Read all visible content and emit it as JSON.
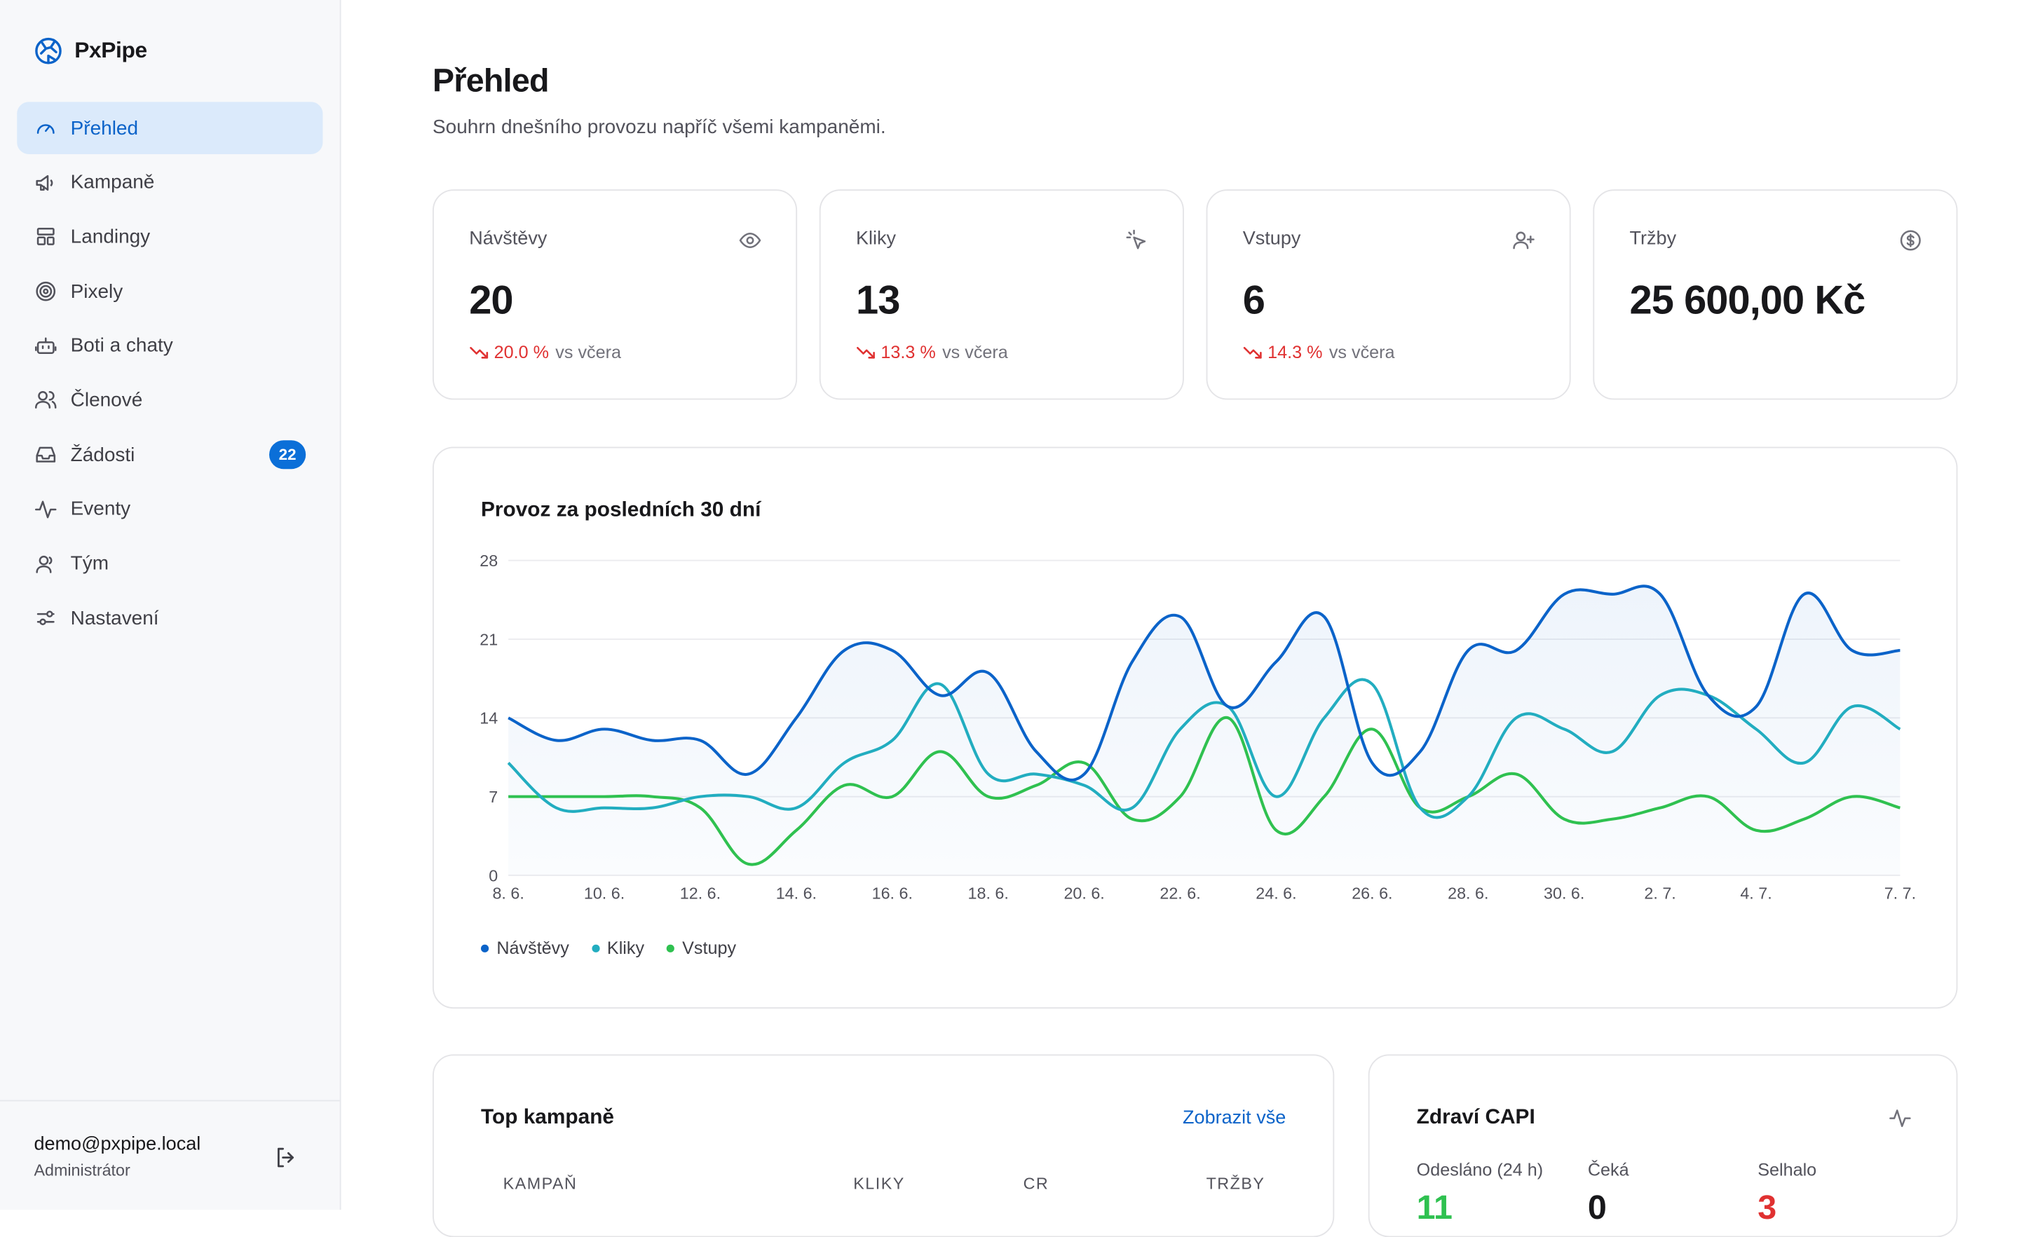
{
  "brand": {
    "name": "PxPipe"
  },
  "nav": {
    "items": [
      {
        "label": "Přehled",
        "icon": "gauge-icon"
      },
      {
        "label": "Kampaně",
        "icon": "megaphone-icon"
      },
      {
        "label": "Landingy",
        "icon": "layout-icon"
      },
      {
        "label": "Pixely",
        "icon": "target-icon"
      },
      {
        "label": "Boti a chaty",
        "icon": "bot-icon"
      },
      {
        "label": "Členové",
        "icon": "users-icon"
      },
      {
        "label": "Žádosti",
        "icon": "inbox-icon",
        "badge": "22"
      },
      {
        "label": "Eventy",
        "icon": "activity-icon"
      },
      {
        "label": "Tým",
        "icon": "team-icon"
      },
      {
        "label": "Nastavení",
        "icon": "sliders-icon"
      }
    ],
    "active": "Přehled"
  },
  "user": {
    "email": "demo@pxpipe.local",
    "role": "Administrátor"
  },
  "page": {
    "title": "Přehled",
    "subtitle": "Souhrn dnešního provozu napříč všemi kampaněmi."
  },
  "kpis": [
    {
      "label": "Návštěvy",
      "value": "20",
      "delta": "20.0 %",
      "vs": "vs včera",
      "icon": "eye-icon"
    },
    {
      "label": "Kliky",
      "value": "13",
      "delta": "13.3 %",
      "vs": "vs včera",
      "icon": "cursor-click-icon"
    },
    {
      "label": "Vstupy",
      "value": "6",
      "delta": "14.3 %",
      "vs": "vs včera",
      "icon": "user-plus-icon"
    },
    {
      "label": "Tržby",
      "value": "25 600,00 Kč",
      "icon": "dollar-circle-icon"
    }
  ],
  "chart": {
    "title": "Provoz za posledních 30 dní",
    "colors": {
      "navstevy": "#0b63c9",
      "kliky": "#22adc0",
      "vstupy": "#2fc150"
    }
  },
  "chart_data": {
    "type": "line",
    "title": "Provoz za posledních 30 dní",
    "x": [
      "8. 6.",
      "9. 6.",
      "10. 6.",
      "11. 6.",
      "12. 6.",
      "13. 6.",
      "14. 6.",
      "15. 6.",
      "16. 6.",
      "17. 6.",
      "18. 6.",
      "19. 6.",
      "20. 6.",
      "21. 6.",
      "22. 6.",
      "23. 6.",
      "24. 6.",
      "25. 6.",
      "26. 6.",
      "27. 6.",
      "28. 6.",
      "29. 6.",
      "30. 6.",
      "1. 7.",
      "2. 7.",
      "3. 7.",
      "4. 7.",
      "5. 7.",
      "6. 7.",
      "7. 7."
    ],
    "x_tick_labels": [
      "8. 6.",
      "10. 6.",
      "12. 6.",
      "14. 6.",
      "16. 6.",
      "18. 6.",
      "20. 6.",
      "22. 6.",
      "24. 6.",
      "26. 6.",
      "28. 6.",
      "30. 6.",
      "2. 7.",
      "4. 7.",
      "7. 7."
    ],
    "y_ticks": [
      0,
      7,
      14,
      21,
      28
    ],
    "ylim": [
      0,
      28
    ],
    "grid": true,
    "legend": "bottom-left",
    "series": [
      {
        "name": "Návštěvy",
        "values": [
          14,
          12,
          13,
          12,
          12,
          9,
          14,
          20,
          20,
          16,
          18,
          11,
          9,
          19,
          23,
          15,
          19,
          23,
          10,
          11,
          20,
          20,
          25,
          25,
          25,
          16,
          15,
          25,
          20,
          20
        ]
      },
      {
        "name": "Kliky",
        "values": [
          10,
          6,
          6,
          6,
          7,
          7,
          6,
          10,
          12,
          17,
          9,
          9,
          8,
          6,
          13,
          15,
          7,
          14,
          17,
          6,
          7,
          14,
          13,
          11,
          16,
          16,
          13,
          10,
          15,
          13
        ]
      },
      {
        "name": "Vstupy",
        "values": [
          7,
          7,
          7,
          7,
          6,
          1,
          4,
          8,
          7,
          11,
          7,
          8,
          10,
          5,
          7,
          14,
          4,
          7,
          13,
          6,
          7,
          9,
          5,
          5,
          6,
          7,
          4,
          5,
          7,
          6
        ]
      }
    ]
  },
  "top_campaigns": {
    "title": "Top kampaně",
    "view_all": "Zobrazit vše",
    "columns": [
      "KAMPAŇ",
      "KLIKY",
      "CR",
      "TRŽBY"
    ]
  },
  "capi": {
    "title": "Zdraví CAPI",
    "stats": [
      {
        "label": "Odesláno (24 h)",
        "value": "11",
        "color": "#2fc150"
      },
      {
        "label": "Čeká",
        "value": "0",
        "color": "#18181b"
      },
      {
        "label": "Selhalo",
        "value": "3",
        "color": "#e03131"
      }
    ]
  }
}
